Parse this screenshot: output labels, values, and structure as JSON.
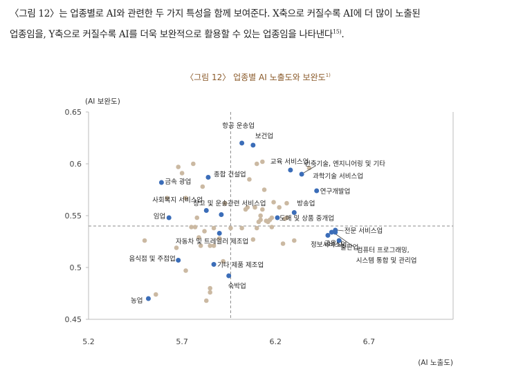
{
  "intro": {
    "line1": "〈그림 12〉는 업종별로 AI와 관련한 두 가지 특성을 함께 보여준다. X축으로 커질수록 AI에 더 많이 노출된",
    "line2": "업종임을, Y축으로 커질수록 AI를 더욱 보완적으로 활용할 수 있는 업종임을 나타낸다",
    "footnote": "15)",
    "end": "."
  },
  "chart_data": {
    "type": "scatter",
    "title": "〈그림 12〉 업종별 AI 노출도와 보완도",
    "title_footnote": "1)",
    "xlabel": "(AI 노출도)",
    "ylabel": "(AI 보완도)",
    "xlim": [
      5.2,
      7.15
    ],
    "ylim": [
      0.45,
      0.65
    ],
    "xticks": [
      5.2,
      5.7,
      6.2,
      6.7
    ],
    "xtick_labels": [
      "5.2",
      "5.7",
      "6.2",
      "6.7"
    ],
    "yticks": [
      0.45,
      0.5,
      0.55,
      0.6,
      0.65
    ],
    "ytick_labels": [
      "0.45",
      "0.5",
      "0.55",
      "0.6",
      "0.65"
    ],
    "reference_lines": {
      "x": 5.96,
      "y": 0.54
    },
    "colors": {
      "highlight": "#3b6db8",
      "other": "#cbb9a2",
      "refline": "#8a8a8a",
      "title": "#8a5a2a",
      "grid": "#bbbbbb"
    },
    "highlighted": [
      {
        "label": "항공 운송업",
        "x": 6.02,
        "y": 0.62
      },
      {
        "label": "보건업",
        "x": 6.08,
        "y": 0.618
      },
      {
        "label": "교육 서비스업",
        "x": 6.28,
        "y": 0.594
      },
      {
        "label": "건축기술, 엔지니어링 및 기타",
        "x": 6.34,
        "y": 0.59
      },
      {
        "label": "과학기술 서비스업",
        "x": 6.34,
        "y": 0.59
      },
      {
        "label": "종합 건설업",
        "x": 5.84,
        "y": 0.587
      },
      {
        "label": "금속 광업",
        "x": 5.59,
        "y": 0.582
      },
      {
        "label": "연구개발업",
        "x": 6.42,
        "y": 0.574
      },
      {
        "label": "사회복지 서비스업",
        "x": 5.83,
        "y": 0.555
      },
      {
        "label": "창고 및 운송관련 서비스업",
        "x": 5.91,
        "y": 0.551
      },
      {
        "label": "방송업",
        "x": 6.3,
        "y": 0.553
      },
      {
        "label": "임업",
        "x": 5.63,
        "y": 0.548
      },
      {
        "label": "도매 및 상품 중개업",
        "x": 6.21,
        "y": 0.548
      },
      {
        "label": "전문 서비스업",
        "x": 6.52,
        "y": 0.536
      },
      {
        "label": "정보서비스업",
        "x": 6.5,
        "y": 0.534
      },
      {
        "label": "자동차 및 트레일러 제조업",
        "x": 5.9,
        "y": 0.533
      },
      {
        "label": "금융업",
        "x": 6.48,
        "y": 0.531
      },
      {
        "label": "출판업",
        "x": 6.54,
        "y": 0.526
      },
      {
        "label": "음식점 및 주점업",
        "x": 5.68,
        "y": 0.507
      },
      {
        "label": "기타 제품 제조업",
        "x": 5.87,
        "y": 0.503
      },
      {
        "label": "숙박업",
        "x": 5.95,
        "y": 0.492
      },
      {
        "label": "컴퓨터 프로그래밍,",
        "x": 6.52,
        "y": 0.534
      },
      {
        "label": "시스템 통합 및 관리업",
        "x": 6.52,
        "y": 0.534
      },
      {
        "label": "농업",
        "x": 5.52,
        "y": 0.47
      }
    ],
    "others": [
      {
        "x": 5.5,
        "y": 0.526
      },
      {
        "x": 5.56,
        "y": 0.474
      },
      {
        "x": 5.62,
        "y": 0.567
      },
      {
        "x": 5.67,
        "y": 0.519
      },
      {
        "x": 5.68,
        "y": 0.597
      },
      {
        "x": 5.7,
        "y": 0.591
      },
      {
        "x": 5.72,
        "y": 0.567
      },
      {
        "x": 5.72,
        "y": 0.497
      },
      {
        "x": 5.75,
        "y": 0.539
      },
      {
        "x": 5.76,
        "y": 0.6
      },
      {
        "x": 5.77,
        "y": 0.539
      },
      {
        "x": 5.78,
        "y": 0.548
      },
      {
        "x": 5.79,
        "y": 0.529
      },
      {
        "x": 5.8,
        "y": 0.521
      },
      {
        "x": 5.81,
        "y": 0.578
      },
      {
        "x": 5.82,
        "y": 0.535
      },
      {
        "x": 5.83,
        "y": 0.468
      },
      {
        "x": 5.85,
        "y": 0.48
      },
      {
        "x": 5.85,
        "y": 0.476
      },
      {
        "x": 5.85,
        "y": 0.521
      },
      {
        "x": 5.87,
        "y": 0.521
      },
      {
        "x": 5.87,
        "y": 0.538
      },
      {
        "x": 5.9,
        "y": 0.528
      },
      {
        "x": 5.92,
        "y": 0.506
      },
      {
        "x": 5.93,
        "y": 0.562
      },
      {
        "x": 5.96,
        "y": 0.538
      },
      {
        "x": 6.02,
        "y": 0.538
      },
      {
        "x": 6.04,
        "y": 0.556
      },
      {
        "x": 6.05,
        "y": 0.558
      },
      {
        "x": 6.06,
        "y": 0.585
      },
      {
        "x": 6.08,
        "y": 0.527
      },
      {
        "x": 6.09,
        "y": 0.558
      },
      {
        "x": 6.1,
        "y": 0.6
      },
      {
        "x": 6.1,
        "y": 0.538
      },
      {
        "x": 6.11,
        "y": 0.544
      },
      {
        "x": 6.12,
        "y": 0.546
      },
      {
        "x": 6.12,
        "y": 0.55
      },
      {
        "x": 6.13,
        "y": 0.602
      },
      {
        "x": 6.13,
        "y": 0.556
      },
      {
        "x": 6.14,
        "y": 0.575
      },
      {
        "x": 6.15,
        "y": 0.545
      },
      {
        "x": 6.16,
        "y": 0.544
      },
      {
        "x": 6.17,
        "y": 0.546
      },
      {
        "x": 6.18,
        "y": 0.539
      },
      {
        "x": 6.18,
        "y": 0.548
      },
      {
        "x": 6.19,
        "y": 0.563
      },
      {
        "x": 6.22,
        "y": 0.558
      },
      {
        "x": 6.24,
        "y": 0.523
      },
      {
        "x": 6.25,
        "y": 0.547
      },
      {
        "x": 6.26,
        "y": 0.548
      },
      {
        "x": 6.26,
        "y": 0.562
      },
      {
        "x": 6.3,
        "y": 0.526
      },
      {
        "x": 6.38,
        "y": 0.596
      }
    ]
  }
}
